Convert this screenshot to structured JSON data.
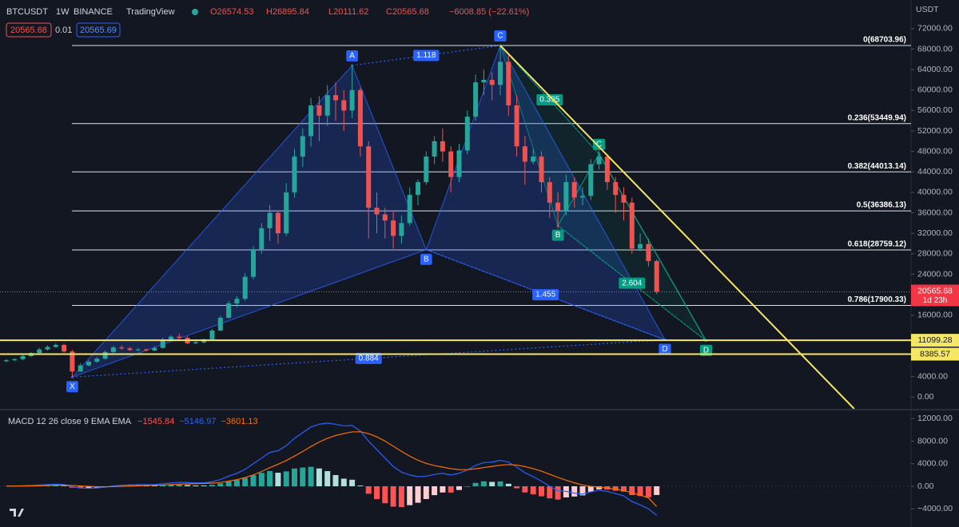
{
  "header": {
    "symbol": "BTCUSDT",
    "interval": "1W",
    "exchange": "BINANCE",
    "source": "TradingView",
    "open": "O26574.53",
    "high": "H26895.84",
    "low": "L20111.62",
    "close": "C20565.68",
    "change": "−6008.85 (−22.61%)",
    "bid": "20565.68",
    "spread": "0.01",
    "ask": "20565.69"
  },
  "chart_data": [
    {
      "type": "candlestick",
      "currency": "USDT",
      "up_color": "#26a69a",
      "down_color": "#ef5350",
      "open": [
        7000,
        7200,
        7400,
        8000,
        8600,
        9300,
        9800,
        10200,
        8900,
        5000,
        6200,
        6900,
        7500,
        8800,
        9700,
        9500,
        9200,
        9300,
        9100,
        9600,
        11200,
        11800,
        11600,
        10500,
        10700,
        11300,
        13000,
        15500,
        18300,
        19200,
        23500,
        28900,
        33000,
        36000,
        32000,
        40000,
        47000,
        51000,
        57000,
        55000,
        59000,
        58000,
        56000,
        60000,
        49000,
        37000,
        35700,
        34500,
        31500,
        34000,
        39500,
        42000,
        47000,
        50000,
        48000,
        43000,
        48200,
        54800,
        61500,
        62000,
        61000,
        65500,
        57000,
        49000,
        46000,
        47000,
        42000,
        38000,
        36500,
        42000,
        39000,
        39300,
        45500,
        47000,
        42000,
        39500,
        38000,
        29000,
        29900,
        26574.53
      ],
      "high": [
        7400,
        7600,
        8200,
        8800,
        9600,
        10100,
        10500,
        10400,
        9200,
        6600,
        7200,
        7800,
        9100,
        10000,
        10100,
        9800,
        9600,
        9500,
        9900,
        11600,
        12100,
        12400,
        11900,
        11000,
        11400,
        13300,
        15900,
        18800,
        19700,
        24200,
        29500,
        34000,
        37500,
        36500,
        41800,
        48500,
        52500,
        58500,
        58800,
        61000,
        61500,
        60000,
        64800,
        60500,
        50000,
        40000,
        37000,
        36500,
        35500,
        41000,
        42500,
        48000,
        51000,
        52500,
        49000,
        49500,
        56000,
        63000,
        64000,
        63500,
        68703.96,
        67000,
        59000,
        51000,
        48500,
        48000,
        43000,
        40000,
        43500,
        43000,
        41000,
        46500,
        48200,
        47500,
        43000,
        41000,
        39000,
        32000,
        31000,
        26895.84
      ],
      "low": [
        6800,
        7000,
        7200,
        7800,
        8400,
        9100,
        9600,
        8700,
        3900,
        4900,
        6000,
        6700,
        7300,
        8600,
        9200,
        9000,
        9000,
        8900,
        9000,
        9500,
        11000,
        11300,
        10300,
        10300,
        10500,
        11100,
        12900,
        15300,
        17500,
        18800,
        23000,
        28000,
        30500,
        30000,
        31500,
        39000,
        45000,
        49000,
        50000,
        53000,
        54000,
        52000,
        54500,
        47000,
        31000,
        32000,
        31000,
        29000,
        30000,
        33500,
        37500,
        41500,
        45500,
        46000,
        40000,
        42000,
        47500,
        54000,
        59000,
        58000,
        59000,
        55000,
        47000,
        41500,
        45500,
        40000,
        35000,
        33000,
        35500,
        37000,
        37500,
        38500,
        44500,
        40500,
        36000,
        34500,
        28000,
        28500,
        25500,
        20111.62
      ],
      "close": [
        7200,
        7400,
        8000,
        8600,
        9300,
        9800,
        10200,
        8900,
        5000,
        6200,
        6900,
        7500,
        8800,
        9700,
        9500,
        9200,
        9300,
        9100,
        9600,
        11200,
        11800,
        11600,
        10500,
        10700,
        11300,
        13000,
        15500,
        18300,
        19200,
        23500,
        28900,
        33000,
        36000,
        32000,
        40000,
        47000,
        51000,
        57000,
        55000,
        59000,
        58000,
        56000,
        60000,
        49000,
        37000,
        35700,
        34500,
        31500,
        34000,
        39500,
        42000,
        47000,
        50000,
        48000,
        43000,
        48200,
        54800,
        61500,
        62000,
        61000,
        65500,
        57000,
        49000,
        46000,
        47000,
        42000,
        38000,
        36500,
        42000,
        39000,
        39300,
        45500,
        47000,
        42000,
        39500,
        38000,
        29000,
        29900,
        26574.53,
        20565.68
      ],
      "ylim": [
        -2300,
        77600
      ],
      "yticks": [
        {
          "value": 72000,
          "label": "72000.00"
        },
        {
          "value": 68000,
          "label": "68000.00"
        },
        {
          "value": 64000,
          "label": "64000.00"
        },
        {
          "value": 60000,
          "label": "60000.00"
        },
        {
          "value": 56000,
          "label": "56000.00"
        },
        {
          "value": 52000,
          "label": "52000.00"
        },
        {
          "value": 48000,
          "label": "48000.00"
        },
        {
          "value": 44000,
          "label": "44000.00"
        },
        {
          "value": 40000,
          "label": "40000.00"
        },
        {
          "value": 36000,
          "label": "36000.00"
        },
        {
          "value": 32000,
          "label": "32000.00"
        },
        {
          "value": 28000,
          "label": "28000.00"
        },
        {
          "value": 24000,
          "label": "24000.00"
        },
        {
          "value": 16000,
          "label": "16000.00"
        },
        {
          "value": 4000,
          "label": "4000.00"
        },
        {
          "value": 0,
          "label": "0.00"
        }
      ],
      "levels": [
        {
          "value": 68703.96,
          "label": "0(68703.96)"
        },
        {
          "value": 53449.94,
          "label": "0.236(53449.94)"
        },
        {
          "value": 44013.14,
          "label": "0.382(44013.14)"
        },
        {
          "value": 36386.13,
          "label": "0.5(36386.13)"
        },
        {
          "value": 28759.12,
          "label": "0.618(28759.12)"
        },
        {
          "value": 17900.33,
          "label": "0.786(17900.33)"
        }
      ],
      "hlines": [
        {
          "value": 11099.28,
          "label": "11099.28"
        },
        {
          "value": 8385.57,
          "label": "8385.57"
        }
      ],
      "hline_color": "#f5e663",
      "last_price": {
        "value": 20565.68,
        "label": "20565.68",
        "countdown": "1d 23h"
      },
      "trendline": {
        "from_bar": 60,
        "from_price": 68703.96,
        "to_bar": 103,
        "to_price": -2300,
        "color": "#f5e663"
      },
      "patterns": [
        {
          "color": "#2962ff",
          "points": [
            {
              "label": "X",
              "bar": 8,
              "price": 3900
            },
            {
              "label": "A",
              "bar": 42,
              "price": 64800
            },
            {
              "label": "B",
              "bar": 51,
              "price": 28800
            },
            {
              "label": "C",
              "bar": 60,
              "price": 68703.96
            },
            {
              "label": "D",
              "bar": 80,
              "price": 11200
            }
          ],
          "ratios": [
            1.118,
            0.884,
            1.455
          ]
        },
        {
          "color": "#089981",
          "points": [
            {
              "label": null,
              "bar": 60,
              "price": 68703.96
            },
            {
              "label": "B",
              "bar": 67,
              "price": 33500
            },
            {
              "label": "C",
              "bar": 72,
              "price": 47500
            },
            {
              "label": "D",
              "bar": 85,
              "price": 11000
            }
          ],
          "ratios": [
            0.395,
            2.604
          ]
        }
      ]
    },
    {
      "type": "macd",
      "title": "MACD 12 26 close 9 EMA EMA",
      "ylim": [
        -7220,
        13450
      ],
      "yticks": [
        {
          "value": 12000,
          "label": "12000.00"
        },
        {
          "value": 8000,
          "label": "8000.00"
        },
        {
          "value": 4000,
          "label": "4000.00"
        },
        {
          "value": 0,
          "label": "0.00"
        },
        {
          "value": -4000,
          "label": "−4000.00"
        }
      ],
      "series": [
        {
          "kind": "histogram",
          "colors": [
            "#26a69a",
            "#b2dfdb",
            "#ff5252",
            "#ffcdd2"
          ],
          "last_label": "−1545.84",
          "values": [
            20,
            20,
            50,
            80,
            120,
            160,
            190,
            90,
            -250,
            -360,
            -330,
            -220,
            -60,
            110,
            190,
            210,
            190,
            150,
            140,
            230,
            300,
            320,
            220,
            140,
            130,
            250,
            520,
            900,
            1120,
            1460,
            1970,
            2380,
            2700,
            2400,
            2640,
            3150,
            3320,
            3450,
            3160,
            2690,
            1990,
            1350,
            1160,
            130,
            -1330,
            -2270,
            -3010,
            -3610,
            -3690,
            -3350,
            -2920,
            -2260,
            -1570,
            -1100,
            -1120,
            -660,
            -50,
            600,
            880,
            780,
            860,
            450,
            -360,
            -1090,
            -1430,
            -1780,
            -2140,
            -2360,
            -1970,
            -1820,
            -1620,
            -980,
            -540,
            -590,
            -790,
            -950,
            -1560,
            -1730,
            -1940,
            -1545.84
          ]
        },
        {
          "kind": "line",
          "color": "#2962ff",
          "last_label": "−5146.97",
          "values": [
            50,
            60,
            100,
            150,
            220,
            300,
            380,
            300,
            -100,
            -300,
            -350,
            -300,
            -150,
            50,
            180,
            250,
            280,
            280,
            300,
            450,
            600,
            700,
            650,
            600,
            620,
            800,
            1200,
            1800,
            2300,
            3000,
            4000,
            5000,
            6000,
            6300,
            7200,
            8500,
            9500,
            10500,
            11000,
            11200,
            11000,
            10700,
            10800,
            9800,
            8000,
            6500,
            5000,
            3500,
            2500,
            2000,
            1700,
            1800,
            2100,
            2300,
            2000,
            2300,
            2900,
            3700,
            4200,
            4300,
            4600,
            4300,
            3400,
            2400,
            1700,
            900,
            0,
            -800,
            -900,
            -1200,
            -1400,
            -1000,
            -700,
            -900,
            -1300,
            -1700,
            -2700,
            -3300,
            -4000,
            -5146.97
          ]
        },
        {
          "kind": "line",
          "color": "#ff6d00",
          "last_label": "−3601.13",
          "values": [
            30,
            40,
            50,
            70,
            100,
            140,
            190,
            210,
            150,
            60,
            -20,
            -80,
            -90,
            -60,
            -10,
            40,
            90,
            130,
            160,
            220,
            300,
            380,
            430,
            460,
            490,
            550,
            680,
            900,
            1180,
            1540,
            2030,
            2620,
            3300,
            3900,
            4560,
            5350,
            6180,
            7050,
            7840,
            8510,
            9010,
            9350,
            9640,
            9670,
            9330,
            8770,
            8010,
            7110,
            6190,
            5350,
            4620,
            4060,
            3670,
            3400,
            3120,
            2960,
            2950,
            3100,
            3320,
            3520,
            3740,
            3850,
            3760,
            3490,
            3130,
            2680,
            2140,
            1560,
            1070,
            620,
            220,
            -20,
            -160,
            -310,
            -510,
            -750,
            -1140,
            -1570,
            -2060,
            -3601.13
          ]
        }
      ]
    }
  ]
}
